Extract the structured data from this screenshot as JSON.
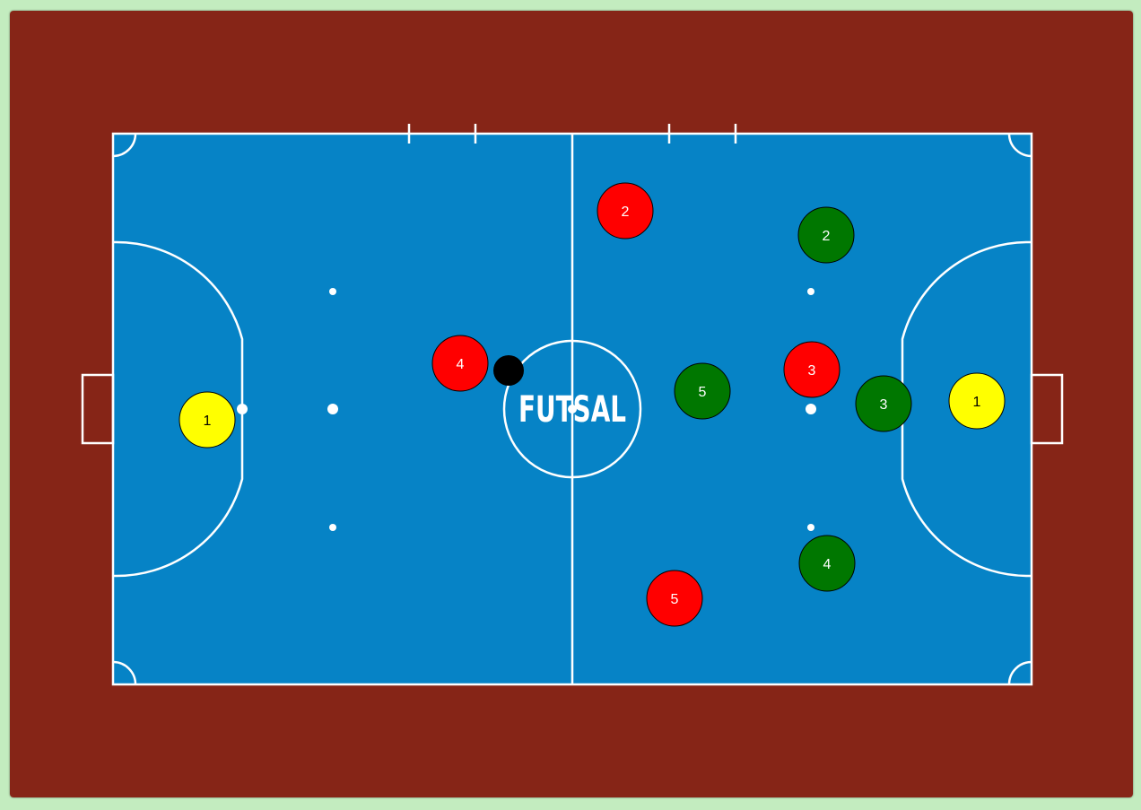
{
  "court": {
    "brand_text": "FUTSAL",
    "colors": {
      "surround": "#862517",
      "floor": "#0683c6",
      "lines": "#ffffff",
      "background": "#c3ecbf"
    }
  },
  "teams": {
    "red": {
      "color": "#ff0000",
      "text_color": "#ffffff"
    },
    "green": {
      "color": "#007700",
      "text_color": "#ffffff"
    },
    "keeper": {
      "color": "#ffff00",
      "text_color": "#000000"
    }
  },
  "ball": {
    "color": "#000000"
  },
  "players": [
    {
      "team": "keeper",
      "number": "1"
    },
    {
      "team": "red",
      "number": "4"
    },
    {
      "team": "red",
      "number": "2"
    },
    {
      "team": "red",
      "number": "3"
    },
    {
      "team": "red",
      "number": "5"
    },
    {
      "team": "green",
      "number": "2"
    },
    {
      "team": "green",
      "number": "5"
    },
    {
      "team": "green",
      "number": "3"
    },
    {
      "team": "green",
      "number": "4"
    },
    {
      "team": "keeper",
      "number": "1"
    }
  ]
}
